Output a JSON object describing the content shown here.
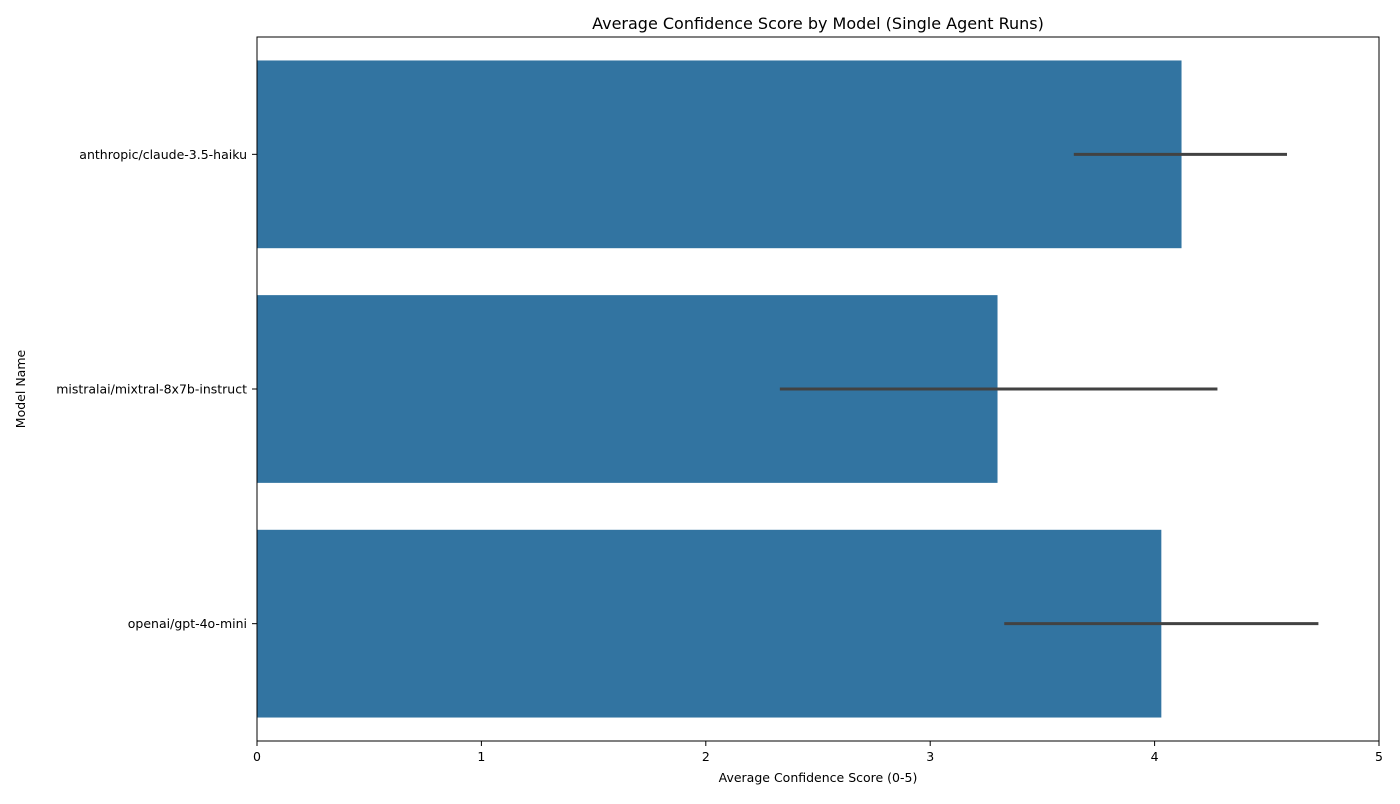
{
  "chart_data": {
    "type": "bar",
    "orientation": "horizontal",
    "title": "Average Confidence Score by Model (Single Agent Runs)",
    "xlabel": "Average Confidence Score (0-5)",
    "ylabel": "Model Name",
    "xlim": [
      0,
      5
    ],
    "xticks": [
      "0",
      "1",
      "2",
      "3",
      "4",
      "5"
    ],
    "categories": [
      "anthropic/claude-3.5-haiku",
      "mistralai/mixtral-8x7b-instruct",
      "openai/gpt-4o-mini"
    ],
    "values": [
      4.12,
      3.3,
      4.03
    ],
    "error_bars": [
      [
        3.64,
        4.59
      ],
      [
        2.33,
        4.28
      ],
      [
        3.33,
        4.73
      ]
    ],
    "grid": false,
    "colors": {
      "bar": "#3274a1",
      "error_bar": "#424242",
      "axis": "#000000"
    }
  }
}
